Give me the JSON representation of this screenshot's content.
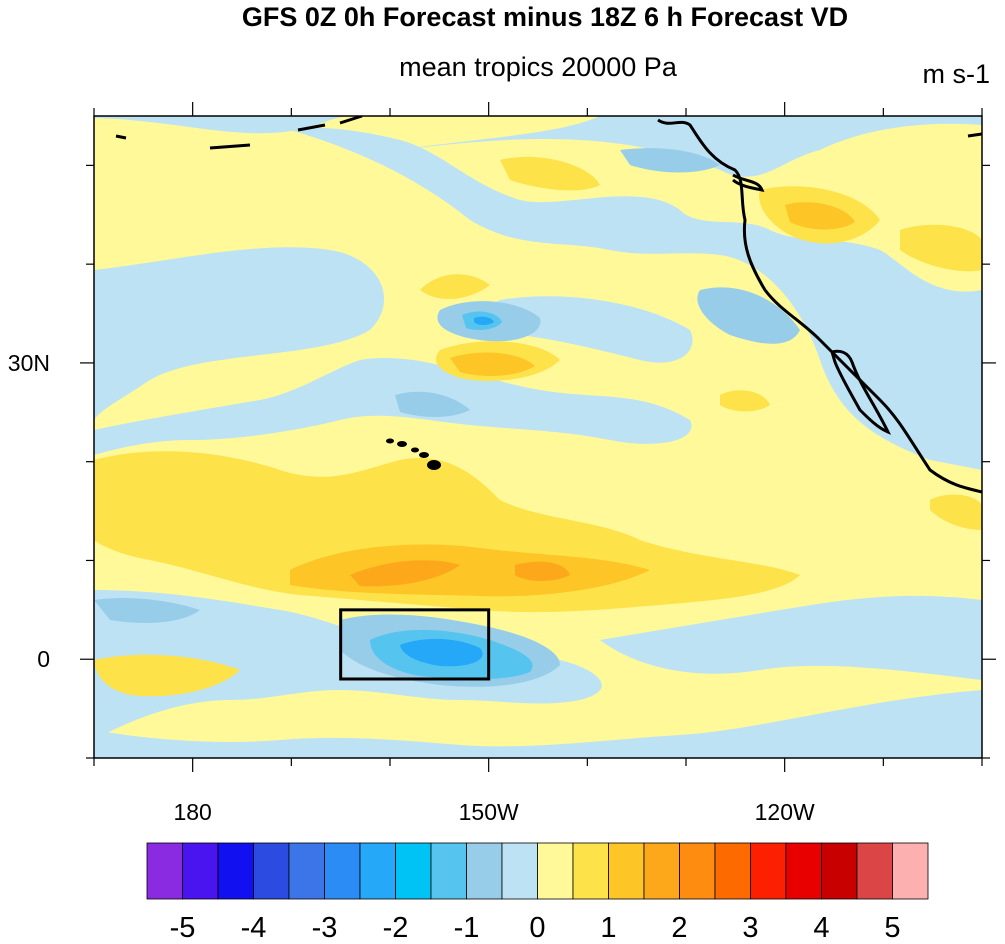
{
  "figure": {
    "title": "GFS 0Z 0h Forecast minus 18Z 6 h Forecast VD",
    "subtitle": "mean tropics 20000 Pa",
    "units": "m s-1"
  },
  "map": {
    "lon_range": [
      -190,
      -100
    ],
    "lat_range": [
      -10,
      55
    ],
    "lon_tick_labels": [
      {
        "lon": -180,
        "label": "180"
      },
      {
        "lon": -150,
        "label": "150W"
      },
      {
        "lon": -120,
        "label": "120W"
      }
    ],
    "lat_tick_labels": [
      {
        "lat": 30,
        "label": "30N"
      },
      {
        "lat": 0,
        "label": "0"
      }
    ],
    "highlight_box": {
      "lon_min": -165,
      "lon_max": -150,
      "lat_min": -2,
      "lat_max": 5
    }
  },
  "colorbar": {
    "levels": [
      "-5",
      "-4",
      "-3",
      "-2",
      "-1",
      "0",
      "1",
      "2",
      "3",
      "4",
      "5"
    ],
    "colors": [
      "#8a2be2",
      "#4a14f0",
      "#1010f0",
      "#2c4be0",
      "#3b75e8",
      "#2c8cf5",
      "#25a8f8",
      "#00c3f5",
      "#55c5f0",
      "#98cdea",
      "#bde2f4",
      "#fff99a",
      "#fde24a",
      "#fdc526",
      "#fda81a",
      "#fd8c10",
      "#fd6a00",
      "#fd2000",
      "#e80000",
      "#c80000",
      "#dc4545",
      "#fcb0b0"
    ]
  },
  "chart_data": {
    "type": "heatmap",
    "title": "GFS 0Z 0h Forecast minus 18Z 6 h Forecast VD",
    "subtitle": "mean tropics 20000 Pa",
    "units": "m s-1",
    "x_range": [
      -190,
      -100
    ],
    "y_range": [
      -10,
      55
    ],
    "levels": [
      -5,
      -4,
      -3,
      -2,
      -1,
      0,
      1,
      2,
      3,
      4,
      5
    ],
    "features": [
      {
        "lon": -155,
        "lat": 9,
        "value": 2.5
      },
      {
        "lon": -142,
        "lat": 9,
        "value": 2
      },
      {
        "lon": -153,
        "lat": 1,
        "value": -2.5
      },
      {
        "lon": -157,
        "lat": 34,
        "value": -2
      },
      {
        "lon": -157,
        "lat": 29,
        "value": 1.5
      },
      {
        "lon": -115,
        "lat": 45,
        "value": 1.5
      }
    ]
  }
}
